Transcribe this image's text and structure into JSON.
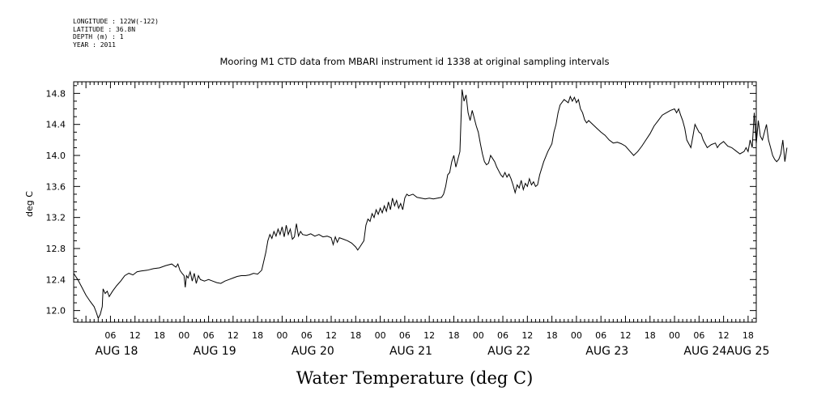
{
  "header": {
    "longitude": "LONGITUDE : 122W(-122)",
    "latitude": "LATITUDE : 36.8N",
    "depth": "DEPTH (m) : 1",
    "year": "YEAR : 2011"
  },
  "chart_data": {
    "type": "line",
    "title": "Mooring M1 CTD data from MBARI instrument id 1338 at original sampling intervals",
    "xlabel": "Water Temperature (deg C)",
    "ylabel": "deg C",
    "ylim": [
      11.85,
      14.95
    ],
    "yticks": [
      12.0,
      12.4,
      12.8,
      13.2,
      13.6,
      14.0,
      14.4,
      14.8
    ],
    "ytick_labels": [
      "12.0",
      "12.4",
      "12.8",
      "13.2",
      "13.6",
      "14.0",
      "14.4",
      "14.8"
    ],
    "xlim_hours": [
      -27,
      140
    ],
    "xticks_hours": [
      -18,
      -12,
      -6,
      0,
      6,
      12,
      18,
      24,
      30,
      36,
      42,
      48,
      54,
      60,
      66,
      72,
      78,
      84,
      90,
      96,
      102,
      108,
      114,
      120,
      126,
      132,
      138
    ],
    "xtick_labels": [
      "06",
      "12",
      "18",
      "00",
      "06",
      "12",
      "18",
      "00",
      "06",
      "12",
      "18",
      "00",
      "06",
      "12",
      "18",
      "00",
      "06",
      "12",
      "18",
      "00",
      "06",
      "12",
      "18",
      "00",
      "06",
      "12",
      "18"
    ],
    "day_labels": [
      {
        "label": "AUG 18",
        "hour": -16.5
      },
      {
        "label": "AUG 19",
        "hour": 7.5
      },
      {
        "label": "AUG 20",
        "hour": 31.5
      },
      {
        "label": "AUG 21",
        "hour": 55.5
      },
      {
        "label": "AUG 22",
        "hour": 79.5
      },
      {
        "label": "AUG 23",
        "hour": 103.5
      },
      {
        "label": "AUG 24",
        "hour": 127.5
      },
      {
        "label": "AUG 25",
        "hour": 138.0
      }
    ],
    "grid": false,
    "series": [
      {
        "color": "#000000",
        "points": [
          [
            -27.0,
            12.48
          ],
          [
            -26.0,
            12.4
          ],
          [
            -25.0,
            12.3
          ],
          [
            -24.0,
            12.2
          ],
          [
            -23.0,
            12.12
          ],
          [
            -22.0,
            12.05
          ],
          [
            -21.5,
            11.98
          ],
          [
            -21.0,
            11.9
          ],
          [
            -20.5,
            11.95
          ],
          [
            -20.0,
            12.05
          ],
          [
            -19.8,
            12.28
          ],
          [
            -19.3,
            12.22
          ],
          [
            -18.8,
            12.25
          ],
          [
            -18.3,
            12.18
          ],
          [
            -17.5,
            12.25
          ],
          [
            -16.5,
            12.32
          ],
          [
            -15.5,
            12.38
          ],
          [
            -14.5,
            12.45
          ],
          [
            -13.5,
            12.48
          ],
          [
            -12.5,
            12.46
          ],
          [
            -11.5,
            12.5
          ],
          [
            -10.5,
            12.51
          ],
          [
            -9.0,
            12.52
          ],
          [
            -7.5,
            12.54
          ],
          [
            -6.0,
            12.55
          ],
          [
            -4.5,
            12.58
          ],
          [
            -3.0,
            12.6
          ],
          [
            -2.0,
            12.56
          ],
          [
            -1.5,
            12.6
          ],
          [
            -1.0,
            12.52
          ],
          [
            -0.5,
            12.48
          ],
          [
            0.0,
            12.45
          ],
          [
            0.3,
            12.3
          ],
          [
            0.6,
            12.45
          ],
          [
            1.0,
            12.42
          ],
          [
            1.5,
            12.5
          ],
          [
            2.0,
            12.38
          ],
          [
            2.5,
            12.48
          ],
          [
            3.0,
            12.35
          ],
          [
            3.5,
            12.45
          ],
          [
            4.0,
            12.4
          ],
          [
            5.0,
            12.38
          ],
          [
            6.0,
            12.4
          ],
          [
            7.0,
            12.38
          ],
          [
            8.0,
            12.36
          ],
          [
            9.0,
            12.35
          ],
          [
            10.0,
            12.38
          ],
          [
            11.0,
            12.4
          ],
          [
            12.0,
            12.42
          ],
          [
            13.0,
            12.44
          ],
          [
            14.0,
            12.45
          ],
          [
            15.0,
            12.45
          ],
          [
            16.0,
            12.46
          ],
          [
            17.0,
            12.48
          ],
          [
            18.0,
            12.47
          ],
          [
            19.0,
            12.52
          ],
          [
            20.0,
            12.75
          ],
          [
            20.5,
            12.9
          ],
          [
            21.0,
            12.98
          ],
          [
            21.5,
            12.93
          ],
          [
            22.0,
            13.02
          ],
          [
            22.5,
            12.96
          ],
          [
            23.0,
            13.05
          ],
          [
            23.5,
            12.98
          ],
          [
            24.0,
            13.08
          ],
          [
            24.5,
            12.95
          ],
          [
            25.0,
            13.1
          ],
          [
            25.5,
            12.98
          ],
          [
            26.0,
            13.05
          ],
          [
            26.5,
            12.92
          ],
          [
            27.0,
            12.95
          ],
          [
            27.5,
            13.12
          ],
          [
            28.0,
            12.96
          ],
          [
            28.5,
            13.02
          ],
          [
            29.0,
            12.98
          ],
          [
            30.0,
            12.97
          ],
          [
            31.0,
            12.99
          ],
          [
            32.0,
            12.96
          ],
          [
            33.0,
            12.98
          ],
          [
            34.0,
            12.95
          ],
          [
            35.0,
            12.96
          ],
          [
            36.0,
            12.94
          ],
          [
            36.5,
            12.85
          ],
          [
            37.0,
            12.95
          ],
          [
            37.5,
            12.88
          ],
          [
            38.0,
            12.94
          ],
          [
            39.0,
            12.92
          ],
          [
            40.0,
            12.9
          ],
          [
            41.0,
            12.87
          ],
          [
            42.0,
            12.82
          ],
          [
            42.5,
            12.78
          ],
          [
            43.0,
            12.82
          ],
          [
            44.0,
            12.9
          ],
          [
            44.5,
            13.1
          ],
          [
            45.0,
            13.18
          ],
          [
            45.5,
            13.15
          ],
          [
            46.0,
            13.25
          ],
          [
            46.5,
            13.2
          ],
          [
            47.0,
            13.3
          ],
          [
            47.5,
            13.24
          ],
          [
            48.0,
            13.32
          ],
          [
            48.5,
            13.26
          ],
          [
            49.0,
            13.35
          ],
          [
            49.5,
            13.28
          ],
          [
            50.0,
            13.4
          ],
          [
            50.5,
            13.3
          ],
          [
            51.0,
            13.45
          ],
          [
            51.5,
            13.35
          ],
          [
            52.0,
            13.42
          ],
          [
            52.5,
            13.32
          ],
          [
            53.0,
            13.38
          ],
          [
            53.5,
            13.3
          ],
          [
            54.0,
            13.45
          ],
          [
            54.5,
            13.5
          ],
          [
            55.0,
            13.48
          ],
          [
            56.0,
            13.5
          ],
          [
            57.0,
            13.46
          ],
          [
            58.0,
            13.45
          ],
          [
            59.0,
            13.44
          ],
          [
            60.0,
            13.45
          ],
          [
            61.0,
            13.44
          ],
          [
            62.0,
            13.45
          ],
          [
            63.0,
            13.46
          ],
          [
            63.5,
            13.5
          ],
          [
            64.0,
            13.6
          ],
          [
            64.5,
            13.75
          ],
          [
            65.0,
            13.78
          ],
          [
            65.5,
            13.92
          ],
          [
            66.0,
            14.0
          ],
          [
            66.5,
            13.85
          ],
          [
            67.0,
            13.95
          ],
          [
            67.5,
            14.05
          ],
          [
            68.0,
            14.85
          ],
          [
            68.5,
            14.7
          ],
          [
            69.0,
            14.78
          ],
          [
            69.5,
            14.55
          ],
          [
            70.0,
            14.45
          ],
          [
            70.5,
            14.58
          ],
          [
            71.0,
            14.48
          ],
          [
            71.5,
            14.38
          ],
          [
            72.0,
            14.3
          ],
          [
            72.5,
            14.15
          ],
          [
            73.0,
            14.02
          ],
          [
            73.5,
            13.92
          ],
          [
            74.0,
            13.88
          ],
          [
            74.5,
            13.9
          ],
          [
            75.0,
            14.0
          ],
          [
            75.5,
            13.96
          ],
          [
            76.0,
            13.92
          ],
          [
            76.5,
            13.85
          ],
          [
            77.0,
            13.8
          ],
          [
            77.5,
            13.75
          ],
          [
            78.0,
            13.72
          ],
          [
            78.5,
            13.78
          ],
          [
            79.0,
            13.72
          ],
          [
            79.5,
            13.76
          ],
          [
            80.0,
            13.7
          ],
          [
            80.5,
            13.62
          ],
          [
            81.0,
            13.52
          ],
          [
            81.5,
            13.62
          ],
          [
            82.0,
            13.58
          ],
          [
            82.5,
            13.68
          ],
          [
            83.0,
            13.56
          ],
          [
            83.5,
            13.64
          ],
          [
            84.0,
            13.6
          ],
          [
            84.5,
            13.7
          ],
          [
            85.0,
            13.62
          ],
          [
            85.5,
            13.66
          ],
          [
            86.0,
            13.6
          ],
          [
            86.5,
            13.62
          ],
          [
            87.0,
            13.75
          ],
          [
            88.0,
            13.92
          ],
          [
            89.0,
            14.05
          ],
          [
            90.0,
            14.15
          ],
          [
            90.5,
            14.3
          ],
          [
            91.0,
            14.4
          ],
          [
            91.5,
            14.55
          ],
          [
            92.0,
            14.65
          ],
          [
            93.0,
            14.72
          ],
          [
            94.0,
            14.68
          ],
          [
            94.5,
            14.76
          ],
          [
            95.0,
            14.7
          ],
          [
            95.5,
            14.75
          ],
          [
            96.0,
            14.68
          ],
          [
            96.5,
            14.72
          ],
          [
            97.0,
            14.6
          ],
          [
            97.5,
            14.55
          ],
          [
            98.0,
            14.46
          ],
          [
            98.5,
            14.42
          ],
          [
            99.0,
            14.45
          ],
          [
            100.0,
            14.4
          ],
          [
            101.0,
            14.35
          ],
          [
            102.0,
            14.3
          ],
          [
            103.0,
            14.26
          ],
          [
            104.0,
            14.2
          ],
          [
            105.0,
            14.16
          ],
          [
            106.0,
            14.17
          ],
          [
            107.0,
            14.15
          ],
          [
            108.0,
            14.12
          ],
          [
            109.0,
            14.06
          ],
          [
            110.0,
            14.0
          ],
          [
            111.0,
            14.05
          ],
          [
            112.0,
            14.12
          ],
          [
            113.0,
            14.2
          ],
          [
            114.0,
            14.28
          ],
          [
            115.0,
            14.38
          ],
          [
            116.0,
            14.45
          ],
          [
            117.0,
            14.52
          ],
          [
            118.0,
            14.55
          ],
          [
            119.0,
            14.58
          ],
          [
            120.0,
            14.6
          ],
          [
            120.5,
            14.55
          ],
          [
            121.0,
            14.6
          ],
          [
            121.5,
            14.52
          ],
          [
            122.0,
            14.45
          ],
          [
            122.5,
            14.35
          ],
          [
            123.0,
            14.2
          ],
          [
            123.5,
            14.15
          ],
          [
            124.0,
            14.1
          ],
          [
            124.5,
            14.25
          ],
          [
            125.0,
            14.4
          ],
          [
            125.5,
            14.35
          ],
          [
            126.0,
            14.3
          ],
          [
            126.5,
            14.28
          ],
          [
            127.0,
            14.2
          ],
          [
            127.5,
            14.15
          ],
          [
            128.0,
            14.1
          ],
          [
            129.0,
            14.14
          ],
          [
            130.0,
            14.16
          ],
          [
            130.5,
            14.1
          ],
          [
            131.0,
            14.14
          ],
          [
            132.0,
            14.18
          ],
          [
            133.0,
            14.12
          ],
          [
            134.0,
            14.1
          ],
          [
            135.0,
            14.06
          ],
          [
            136.0,
            14.02
          ],
          [
            137.0,
            14.05
          ],
          [
            137.5,
            14.1
          ],
          [
            138.0,
            14.05
          ],
          [
            138.5,
            14.2
          ],
          [
            139.0,
            14.1
          ],
          [
            139.5,
            14.55
          ],
          [
            140.0,
            14.15
          ],
          [
            140.5,
            14.45
          ],
          [
            141.0,
            14.25
          ],
          [
            141.5,
            14.2
          ],
          [
            142.0,
            14.3
          ],
          [
            142.5,
            14.4
          ],
          [
            143.0,
            14.2
          ],
          [
            143.5,
            14.1
          ],
          [
            144.0,
            14.0
          ],
          [
            144.5,
            13.95
          ],
          [
            145.0,
            13.92
          ],
          [
            145.5,
            13.95
          ],
          [
            146.0,
            14.02
          ],
          [
            146.5,
            14.2
          ],
          [
            147.0,
            13.92
          ],
          [
            147.5,
            14.1
          ]
        ]
      }
    ]
  }
}
